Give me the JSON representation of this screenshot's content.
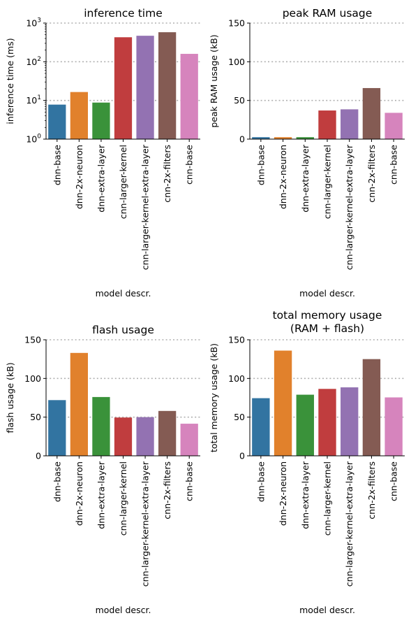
{
  "chart_data": [
    {
      "type": "bar",
      "title": "inference time",
      "xlabel": "model descr.",
      "ylabel": "inference time (ms)",
      "yscale": "log",
      "ylim": [
        1,
        1000
      ],
      "yticks": [
        "10^0",
        "10^1",
        "10^2",
        "10^3"
      ],
      "categories": [
        "dnn-base",
        "dnn-2x-neuron",
        "dnn-extra-layer",
        "cnn-larger-kernel",
        "cnn-larger-kernel-extra-layer",
        "cnn-2x-filters",
        "cnn-base"
      ],
      "values": [
        7.8,
        16.5,
        8.8,
        430,
        470,
        580,
        160
      ],
      "grid": "y dotted"
    },
    {
      "type": "bar",
      "title": "peak RAM usage",
      "xlabel": "model descr.",
      "ylabel": "peak RAM usage (kB)",
      "yscale": "linear",
      "ylim": [
        0,
        150
      ],
      "yticks": [
        "0",
        "50",
        "100",
        "150"
      ],
      "categories": [
        "dnn-base",
        "dnn-2x-neuron",
        "dnn-extra-layer",
        "cnn-larger-kernel",
        "cnn-larger-kernel-extra-layer",
        "cnn-2x-filters",
        "cnn-base"
      ],
      "values": [
        2.5,
        2.5,
        2.5,
        37,
        38.5,
        66,
        34
      ],
      "grid": "y dotted"
    },
    {
      "type": "bar",
      "title": "flash usage",
      "xlabel": "model descr.",
      "ylabel": "flash usage (kB)",
      "yscale": "linear",
      "ylim": [
        0,
        150
      ],
      "yticks": [
        "0",
        "50",
        "100",
        "150"
      ],
      "categories": [
        "dnn-base",
        "dnn-2x-neuron",
        "dnn-extra-layer",
        "cnn-larger-kernel",
        "cnn-larger-kernel-extra-layer",
        "cnn-2x-filters",
        "cnn-base"
      ],
      "values": [
        72,
        133,
        76,
        49.5,
        50,
        58,
        41.5
      ],
      "grid": "y dotted"
    },
    {
      "type": "bar",
      "title": "total memory usage\n(RAM + flash)",
      "xlabel": "model descr.",
      "ylabel": "total memory usage (kB)",
      "yscale": "linear",
      "ylim": [
        0,
        150
      ],
      "yticks": [
        "0",
        "50",
        "100",
        "150"
      ],
      "categories": [
        "dnn-base",
        "dnn-2x-neuron",
        "dnn-extra-layer",
        "cnn-larger-kernel",
        "cnn-larger-kernel-extra-layer",
        "cnn-2x-filters",
        "cnn-base"
      ],
      "values": [
        74.5,
        136,
        79,
        86.5,
        88.5,
        125,
        75.5
      ],
      "grid": "y dotted"
    }
  ],
  "colors": [
    "#3274a1",
    "#e1812c",
    "#3a923a",
    "#c03d3e",
    "#9372b2",
    "#845b53",
    "#d684bd"
  ]
}
